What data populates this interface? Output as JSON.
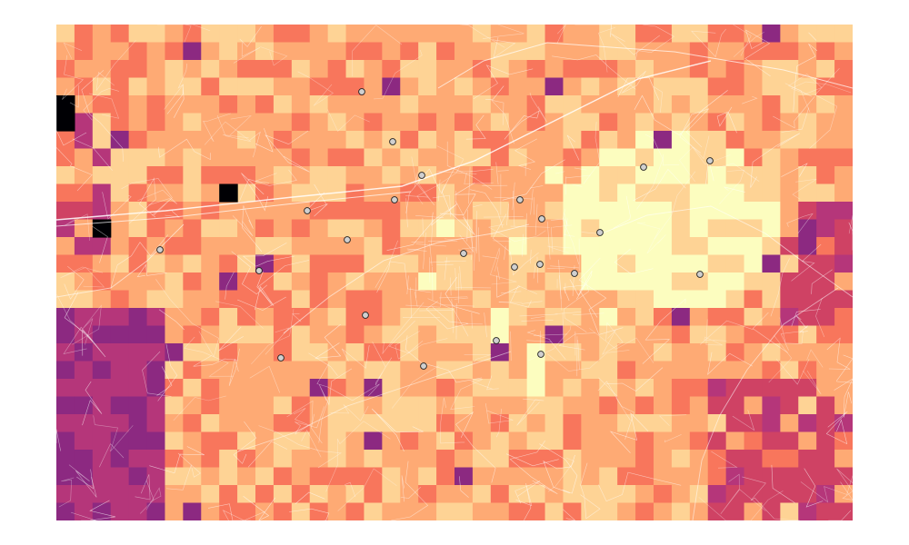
{
  "map": {
    "grid_cols": 44,
    "grid_rows": 28,
    "palette": [
      "#fcfdbf",
      "#fed395",
      "#feaa74",
      "#f8765c",
      "#e24f5e",
      "#cf4264",
      "#b5367a",
      "#8c2981",
      "#3b0f70",
      "#000004"
    ],
    "poi_color": "#d0d0d0",
    "poi_stroke": "#222222",
    "road_color": "#ffffff",
    "points_of_interest_count": 20
  }
}
